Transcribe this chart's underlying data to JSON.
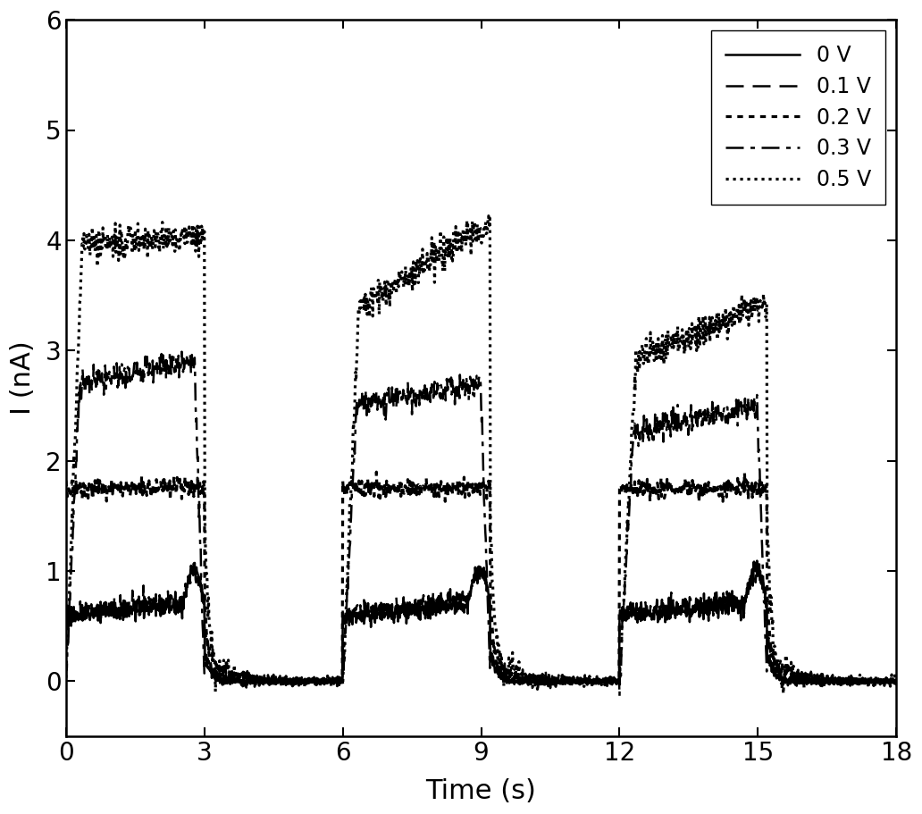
{
  "xlabel": "Time (s)",
  "ylabel": "I (nA)",
  "xlim": [
    0,
    18
  ],
  "ylim": [
    -0.5,
    6
  ],
  "yticks": [
    0,
    1,
    2,
    3,
    4,
    5,
    6
  ],
  "xticks": [
    0,
    3,
    6,
    9,
    12,
    15,
    18
  ],
  "background_color": "#ffffff",
  "legend_labels": [
    "0 V",
    "0.1 V",
    "0.2 V",
    "0.3 V",
    "0.5 V"
  ],
  "line_color": "#000000",
  "label_fontsize": 22,
  "tick_fontsize": 20,
  "legend_fontsize": 17
}
